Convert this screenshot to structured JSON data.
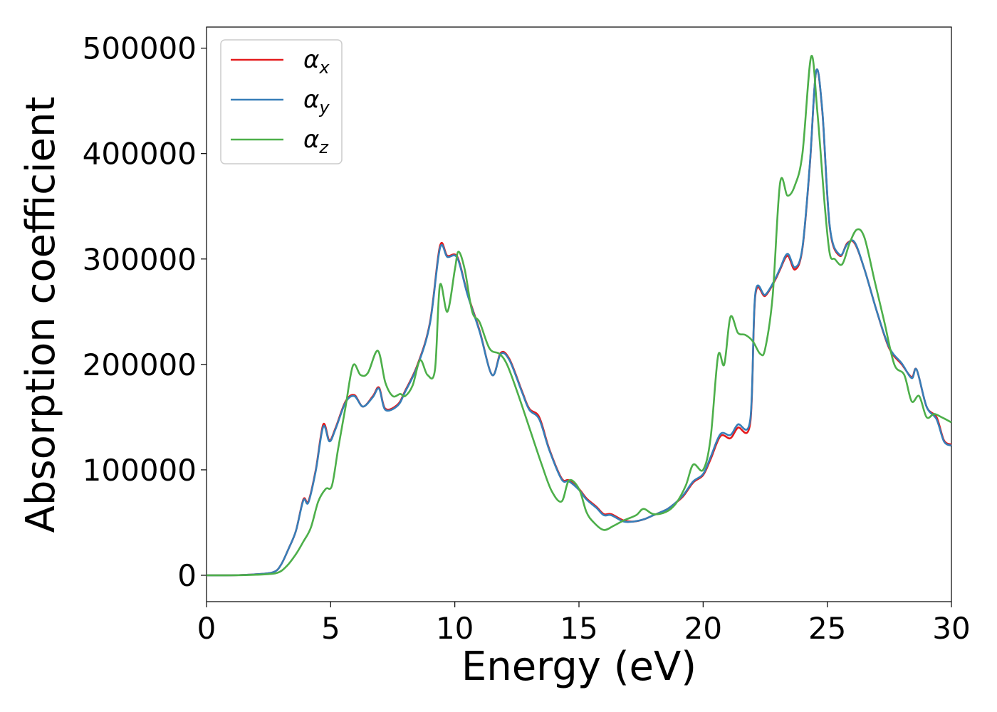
{
  "chart_data": {
    "type": "line",
    "title": "",
    "xlabel": "Energy (eV)",
    "ylabel": "Absorption coefficient",
    "xlim": [
      0,
      30
    ],
    "ylim": [
      -25000,
      520000
    ],
    "xticks": [
      0,
      5,
      10,
      15,
      20,
      25,
      30
    ],
    "xtick_labels": [
      "0",
      "5",
      "10",
      "15",
      "20",
      "25",
      "30"
    ],
    "yticks": [
      0,
      100000,
      200000,
      300000,
      400000,
      500000
    ],
    "ytick_labels": [
      "0",
      "100000",
      "200000",
      "300000",
      "400000",
      "500000"
    ],
    "grid": false,
    "legend_position": "top-left",
    "series": [
      {
        "name": "α_x",
        "label_base": "α",
        "label_sub": "x",
        "color": "#e41a1c",
        "x": [
          0,
          1,
          2,
          2.7,
          3.0,
          3.3,
          3.6,
          3.9,
          4.1,
          4.4,
          4.7,
          4.95,
          5.2,
          5.6,
          5.95,
          6.3,
          6.7,
          6.95,
          7.2,
          7.7,
          8.0,
          8.5,
          9.0,
          9.4,
          9.7,
          10.1,
          10.5,
          11.0,
          11.5,
          11.85,
          12.2,
          12.7,
          13.0,
          13.4,
          13.8,
          14.3,
          14.6,
          15.0,
          15.3,
          15.7,
          16.0,
          16.3,
          16.8,
          17.2,
          17.6,
          18.0,
          18.5,
          18.8,
          19.2,
          19.6,
          20.0,
          20.3,
          20.7,
          21.1,
          21.4,
          21.9,
          22.1,
          22.5,
          22.9,
          23.1,
          23.4,
          23.7,
          24.0,
          24.3,
          24.55,
          24.8,
          25.1,
          25.5,
          25.8,
          26.1,
          26.5,
          27.0,
          27.5,
          28.0,
          28.4,
          28.6,
          29.0,
          29.4,
          29.7,
          30
        ],
        "y": [
          0,
          0,
          1000,
          3000,
          10000,
          25000,
          42000,
          72000,
          70000,
          100000,
          143000,
          128000,
          140000,
          165000,
          171000,
          160000,
          170000,
          178000,
          158000,
          162000,
          175000,
          200000,
          240000,
          312000,
          303000,
          302000,
          268000,
          232000,
          190000,
          211000,
          205000,
          175000,
          158000,
          150000,
          120000,
          92000,
          90000,
          82000,
          73000,
          65000,
          58000,
          58000,
          52000,
          51000,
          53000,
          57000,
          62000,
          67000,
          75000,
          88000,
          95000,
          110000,
          132000,
          130000,
          140000,
          145000,
          265000,
          265000,
          280000,
          290000,
          303000,
          290000,
          310000,
          390000,
          478000,
          440000,
          330000,
          303000,
          315000,
          315000,
          290000,
          250000,
          215000,
          200000,
          188000,
          195000,
          160000,
          150000,
          128000,
          124000
        ]
      },
      {
        "name": "α_y",
        "label_base": "α",
        "label_sub": "y",
        "color": "#377eb8",
        "x": [
          0,
          1,
          2,
          2.7,
          3.0,
          3.3,
          3.6,
          3.9,
          4.1,
          4.4,
          4.7,
          4.95,
          5.2,
          5.6,
          5.95,
          6.3,
          6.7,
          6.95,
          7.2,
          7.7,
          8.0,
          8.5,
          9.0,
          9.4,
          9.7,
          10.1,
          10.5,
          11.0,
          11.5,
          11.85,
          12.2,
          12.7,
          13.0,
          13.4,
          13.8,
          14.3,
          14.6,
          15.0,
          15.3,
          15.7,
          16.0,
          16.3,
          16.8,
          17.2,
          17.6,
          18.0,
          18.5,
          18.8,
          19.2,
          19.6,
          20.0,
          20.3,
          20.7,
          21.1,
          21.4,
          21.9,
          22.1,
          22.5,
          22.9,
          23.1,
          23.4,
          23.7,
          24.0,
          24.3,
          24.55,
          24.8,
          25.1,
          25.5,
          25.8,
          26.1,
          26.5,
          27.0,
          27.5,
          28.0,
          28.4,
          28.6,
          29.0,
          29.4,
          29.7,
          30
        ],
        "y": [
          0,
          0,
          1000,
          3000,
          10000,
          25000,
          42000,
          71000,
          69000,
          99000,
          141000,
          127000,
          139000,
          164000,
          170000,
          160000,
          169000,
          177000,
          157000,
          161000,
          174000,
          199000,
          239000,
          310000,
          302000,
          301000,
          267000,
          231000,
          190000,
          210000,
          204000,
          174000,
          157000,
          148000,
          119000,
          91000,
          89000,
          81000,
          72000,
          64000,
          57000,
          57000,
          51000,
          51000,
          53000,
          57000,
          62000,
          67000,
          76000,
          89000,
          96000,
          112000,
          134000,
          133000,
          143000,
          148000,
          267000,
          266000,
          281000,
          291000,
          305000,
          292000,
          311000,
          391000,
          478000,
          441000,
          331000,
          304000,
          314000,
          316000,
          290000,
          250000,
          216000,
          201000,
          187000,
          195000,
          160000,
          148000,
          127000,
          123000
        ]
      },
      {
        "name": "α_z",
        "label_base": "α",
        "label_sub": "z",
        "color": "#4daf4a",
        "x": [
          0,
          1,
          2,
          2.8,
          3.2,
          3.6,
          3.9,
          4.2,
          4.5,
          4.8,
          5.05,
          5.3,
          5.6,
          5.9,
          6.2,
          6.5,
          6.9,
          7.2,
          7.5,
          7.8,
          8.0,
          8.3,
          8.6,
          8.9,
          9.2,
          9.4,
          9.7,
          10.0,
          10.15,
          10.4,
          10.7,
          11.0,
          11.4,
          11.8,
          12.1,
          12.5,
          13.0,
          13.5,
          13.9,
          14.3,
          14.6,
          15.0,
          15.3,
          15.6,
          16.0,
          16.4,
          16.8,
          17.3,
          17.6,
          18.0,
          18.5,
          18.9,
          19.3,
          19.6,
          20.0,
          20.3,
          20.6,
          20.85,
          21.1,
          21.4,
          21.7,
          22.0,
          22.3,
          22.5,
          22.8,
          23.1,
          23.4,
          23.7,
          24.0,
          24.35,
          24.6,
          24.9,
          25.1,
          25.3,
          25.6,
          25.9,
          26.2,
          26.5,
          26.9,
          27.3,
          27.7,
          28.1,
          28.4,
          28.7,
          29.0,
          29.3,
          29.6,
          30
        ],
        "y": [
          0,
          0,
          500,
          2000,
          8000,
          20000,
          32000,
          45000,
          70000,
          82000,
          85000,
          120000,
          160000,
          199000,
          190000,
          192000,
          213000,
          183000,
          170000,
          172000,
          170000,
          180000,
          204000,
          190000,
          195000,
          275000,
          250000,
          290000,
          307000,
          290000,
          250000,
          240000,
          215000,
          210000,
          200000,
          175000,
          140000,
          105000,
          80000,
          70000,
          90000,
          82000,
          60000,
          50000,
          43000,
          47000,
          52000,
          57000,
          63000,
          58000,
          60000,
          68000,
          85000,
          105000,
          100000,
          130000,
          208000,
          200000,
          245000,
          230000,
          228000,
          222000,
          210000,
          215000,
          265000,
          372000,
          360000,
          370000,
          400000,
          492000,
          440000,
          350000,
          305000,
          300000,
          295000,
          315000,
          328000,
          320000,
          280000,
          240000,
          200000,
          190000,
          165000,
          170000,
          150000,
          153000,
          150000,
          145000
        ]
      }
    ]
  }
}
